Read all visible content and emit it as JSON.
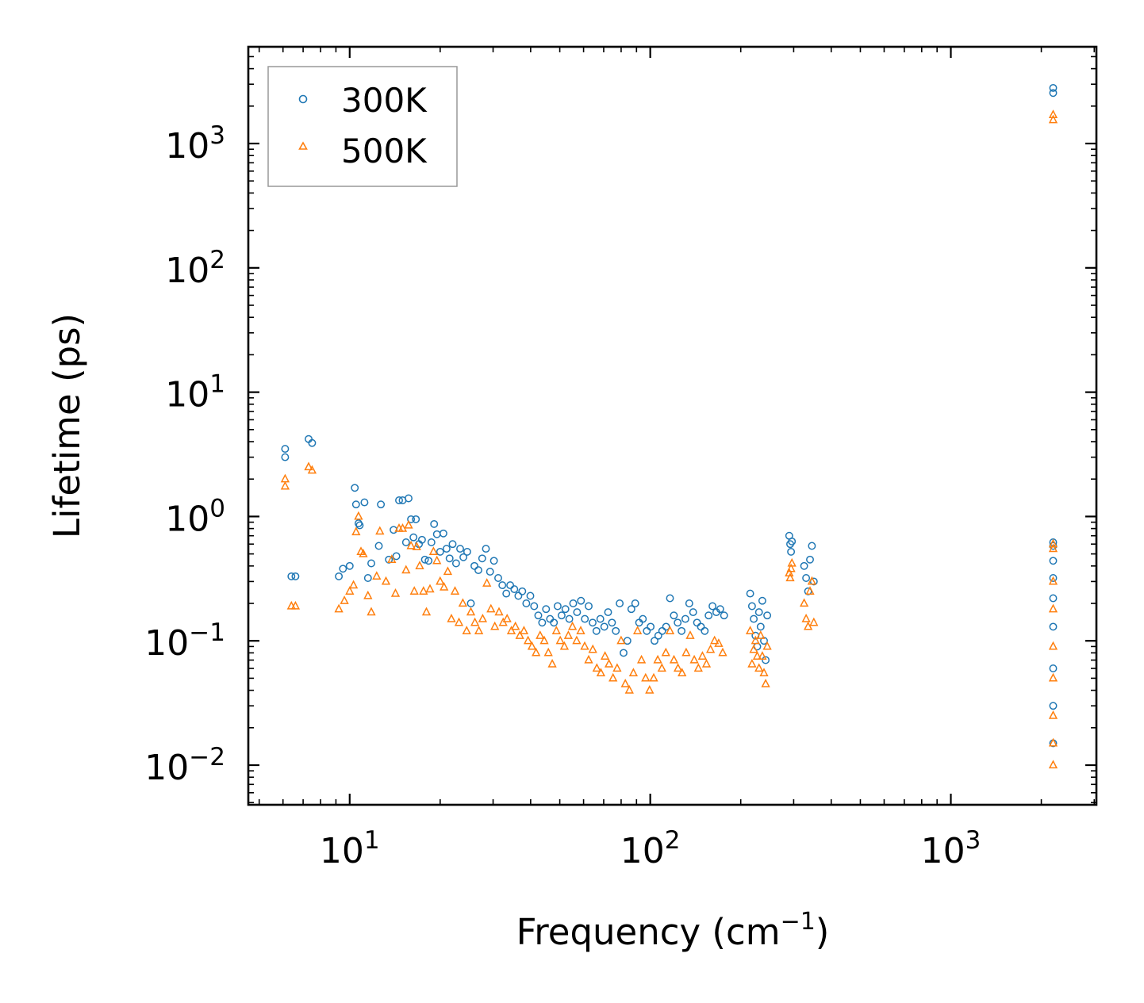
{
  "chart_data": {
    "type": "scatter",
    "title": "",
    "xlabel": "Frequency (cm",
    "xlabel_sup": "−1",
    "xlabel_end": ")",
    "ylabel": "Lifetime (ps)",
    "xscale": "log",
    "yscale": "log",
    "xlim": [
      4.6,
      3050
    ],
    "ylim": [
      0.0048,
      6000
    ],
    "legend_position": "top-left",
    "x_ticks": [
      {
        "base": "10",
        "exp": "1",
        "value": 10
      },
      {
        "base": "10",
        "exp": "2",
        "value": 100
      },
      {
        "base": "10",
        "exp": "3",
        "value": 1000
      }
    ],
    "y_ticks": [
      {
        "base": "10",
        "exp": "−2",
        "value": 0.01
      },
      {
        "base": "10",
        "exp": "−1",
        "value": 0.1
      },
      {
        "base": "10",
        "exp": "0",
        "value": 1
      },
      {
        "base": "10",
        "exp": "1",
        "value": 10
      },
      {
        "base": "10",
        "exp": "2",
        "value": 100
      },
      {
        "base": "10",
        "exp": "3",
        "value": 1000
      }
    ],
    "series": [
      {
        "name": "300K",
        "marker": "circle",
        "color": "#1f77b4",
        "points": [
          [
            6.1,
            3.5
          ],
          [
            6.1,
            3.0
          ],
          [
            6.4,
            0.33
          ],
          [
            6.6,
            0.33
          ],
          [
            7.3,
            4.2
          ],
          [
            7.5,
            3.9
          ],
          [
            9.2,
            0.33
          ],
          [
            9.5,
            0.38
          ],
          [
            10.0,
            0.4
          ],
          [
            10.4,
            1.7
          ],
          [
            10.5,
            1.25
          ],
          [
            10.7,
            0.88
          ],
          [
            10.8,
            0.85
          ],
          [
            11.2,
            1.3
          ],
          [
            11.5,
            0.32
          ],
          [
            11.8,
            0.42
          ],
          [
            12.5,
            0.58
          ],
          [
            12.7,
            1.25
          ],
          [
            13.5,
            0.45
          ],
          [
            14.0,
            0.78
          ],
          [
            14.3,
            0.48
          ],
          [
            14.6,
            1.35
          ],
          [
            15.0,
            1.35
          ],
          [
            15.4,
            0.62
          ],
          [
            15.7,
            1.4
          ],
          [
            16.0,
            0.95
          ],
          [
            16.3,
            0.68
          ],
          [
            16.6,
            0.95
          ],
          [
            17.0,
            0.6
          ],
          [
            17.4,
            0.65
          ],
          [
            17.8,
            0.45
          ],
          [
            18.3,
            0.44
          ],
          [
            18.7,
            0.62
          ],
          [
            19.1,
            0.87
          ],
          [
            19.5,
            0.72
          ],
          [
            20.0,
            0.52
          ],
          [
            20.5,
            0.73
          ],
          [
            21.0,
            0.55
          ],
          [
            21.5,
            0.46
          ],
          [
            22.0,
            0.6
          ],
          [
            22.6,
            0.42
          ],
          [
            23.3,
            0.55
          ],
          [
            23.9,
            0.47
          ],
          [
            24.6,
            0.52
          ],
          [
            25.3,
            0.2
          ],
          [
            26.0,
            0.4
          ],
          [
            26.8,
            0.37
          ],
          [
            27.6,
            0.46
          ],
          [
            28.4,
            0.55
          ],
          [
            29.3,
            0.36
          ],
          [
            30.2,
            0.44
          ],
          [
            31.2,
            0.32
          ],
          [
            32.2,
            0.28
          ],
          [
            33.2,
            0.24
          ],
          [
            34.2,
            0.28
          ],
          [
            35.3,
            0.26
          ],
          [
            36.4,
            0.23
          ],
          [
            37.5,
            0.25
          ],
          [
            38.7,
            0.2
          ],
          [
            39.9,
            0.23
          ],
          [
            41.1,
            0.19
          ],
          [
            42.4,
            0.16
          ],
          [
            43.7,
            0.14
          ],
          [
            45.0,
            0.18
          ],
          [
            46.4,
            0.15
          ],
          [
            47.8,
            0.14
          ],
          [
            49.2,
            0.19
          ],
          [
            50.7,
            0.16
          ],
          [
            52.2,
            0.18
          ],
          [
            53.8,
            0.15
          ],
          [
            55.4,
            0.2
          ],
          [
            57.1,
            0.17
          ],
          [
            58.8,
            0.21
          ],
          [
            60.6,
            0.15
          ],
          [
            62.4,
            0.19
          ],
          [
            64.3,
            0.14
          ],
          [
            66.2,
            0.12
          ],
          [
            68.2,
            0.15
          ],
          [
            70.3,
            0.13
          ],
          [
            72.4,
            0.17
          ],
          [
            74.6,
            0.14
          ],
          [
            76.8,
            0.12
          ],
          [
            79.1,
            0.2
          ],
          [
            81.5,
            0.08
          ],
          [
            83.9,
            0.1
          ],
          [
            86.5,
            0.18
          ],
          [
            89.1,
            0.2
          ],
          [
            91.8,
            0.14
          ],
          [
            94.5,
            0.15
          ],
          [
            97.4,
            0.12
          ],
          [
            100.3,
            0.13
          ],
          [
            103.3,
            0.1
          ],
          [
            106.4,
            0.11
          ],
          [
            109.6,
            0.12
          ],
          [
            112.9,
            0.13
          ],
          [
            116.3,
            0.22
          ],
          [
            119.8,
            0.16
          ],
          [
            123.4,
            0.14
          ],
          [
            127.1,
            0.12
          ],
          [
            130.9,
            0.15
          ],
          [
            134.8,
            0.2
          ],
          [
            138.9,
            0.17
          ],
          [
            143.1,
            0.14
          ],
          [
            147.4,
            0.13
          ],
          [
            151.8,
            0.12
          ],
          [
            156.4,
            0.16
          ],
          [
            161.1,
            0.19
          ],
          [
            165.9,
            0.17
          ],
          [
            170.9,
            0.18
          ],
          [
            176.0,
            0.16
          ],
          [
            215.0,
            0.24
          ],
          [
            218.0,
            0.19
          ],
          [
            221.0,
            0.15
          ],
          [
            224.0,
            0.11
          ],
          [
            227.0,
            0.09
          ],
          [
            230.0,
            0.17
          ],
          [
            233.0,
            0.13
          ],
          [
            236.0,
            0.21
          ],
          [
            239.0,
            0.1
          ],
          [
            242.0,
            0.07
          ],
          [
            245.0,
            0.16
          ],
          [
            290.0,
            0.7
          ],
          [
            292.0,
            0.6
          ],
          [
            294.0,
            0.52
          ],
          [
            296.0,
            0.63
          ],
          [
            325.0,
            0.4
          ],
          [
            330.0,
            0.32
          ],
          [
            335.0,
            0.25
          ],
          [
            340.0,
            0.45
          ],
          [
            345.0,
            0.58
          ],
          [
            350.0,
            0.3
          ],
          [
            2190.0,
            2800
          ],
          [
            2190.0,
            2550
          ],
          [
            2190.0,
            0.62
          ],
          [
            2190.0,
            0.58
          ],
          [
            2190.0,
            0.44
          ],
          [
            2190.0,
            0.32
          ],
          [
            2190.0,
            0.22
          ],
          [
            2190.0,
            0.13
          ],
          [
            2190.0,
            0.06
          ],
          [
            2190.0,
            0.03
          ],
          [
            2190.0,
            0.015
          ]
        ]
      },
      {
        "name": "500K",
        "marker": "triangle",
        "color": "#ff7f0e",
        "points": [
          [
            6.1,
            2.0
          ],
          [
            6.1,
            1.75
          ],
          [
            6.4,
            0.19
          ],
          [
            6.6,
            0.19
          ],
          [
            7.3,
            2.5
          ],
          [
            7.5,
            2.35
          ],
          [
            9.2,
            0.18
          ],
          [
            9.6,
            0.21
          ],
          [
            10.0,
            0.25
          ],
          [
            10.3,
            0.28
          ],
          [
            10.5,
            0.75
          ],
          [
            10.7,
            1.0
          ],
          [
            10.9,
            0.52
          ],
          [
            11.1,
            0.5
          ],
          [
            11.5,
            0.23
          ],
          [
            11.8,
            0.17
          ],
          [
            12.3,
            0.33
          ],
          [
            12.6,
            0.76
          ],
          [
            13.2,
            0.3
          ],
          [
            13.8,
            0.45
          ],
          [
            14.2,
            0.24
          ],
          [
            14.6,
            0.8
          ],
          [
            15.0,
            0.8
          ],
          [
            15.4,
            0.37
          ],
          [
            15.7,
            0.85
          ],
          [
            16.0,
            0.58
          ],
          [
            16.4,
            0.25
          ],
          [
            16.7,
            0.57
          ],
          [
            17.1,
            0.4
          ],
          [
            17.6,
            0.25
          ],
          [
            18.0,
            0.17
          ],
          [
            18.5,
            0.26
          ],
          [
            19.0,
            0.52
          ],
          [
            19.5,
            0.44
          ],
          [
            20.0,
            0.3
          ],
          [
            20.6,
            0.27
          ],
          [
            21.2,
            0.36
          ],
          [
            21.8,
            0.15
          ],
          [
            22.4,
            0.25
          ],
          [
            23.1,
            0.14
          ],
          [
            23.8,
            0.2
          ],
          [
            24.5,
            0.12
          ],
          [
            25.3,
            0.17
          ],
          [
            26.1,
            0.14
          ],
          [
            26.9,
            0.12
          ],
          [
            27.7,
            0.15
          ],
          [
            28.6,
            0.29
          ],
          [
            29.5,
            0.18
          ],
          [
            30.4,
            0.13
          ],
          [
            31.4,
            0.17
          ],
          [
            32.4,
            0.14
          ],
          [
            33.4,
            0.15
          ],
          [
            34.5,
            0.12
          ],
          [
            35.6,
            0.13
          ],
          [
            36.8,
            0.11
          ],
          [
            38.0,
            0.12
          ],
          [
            39.2,
            0.1
          ],
          [
            40.4,
            0.09
          ],
          [
            41.7,
            0.08
          ],
          [
            43.0,
            0.11
          ],
          [
            44.4,
            0.1
          ],
          [
            45.8,
            0.08
          ],
          [
            47.2,
            0.065
          ],
          [
            48.7,
            0.12
          ],
          [
            50.2,
            0.1
          ],
          [
            51.8,
            0.09
          ],
          [
            53.4,
            0.11
          ],
          [
            55.1,
            0.13
          ],
          [
            56.9,
            0.1
          ],
          [
            58.7,
            0.12
          ],
          [
            60.5,
            0.09
          ],
          [
            62.4,
            0.07
          ],
          [
            64.4,
            0.085
          ],
          [
            66.4,
            0.06
          ],
          [
            68.5,
            0.055
          ],
          [
            70.7,
            0.075
          ],
          [
            72.9,
            0.065
          ],
          [
            75.2,
            0.05
          ],
          [
            77.6,
            0.06
          ],
          [
            80.0,
            0.1
          ],
          [
            82.6,
            0.045
          ],
          [
            85.2,
            0.04
          ],
          [
            87.9,
            0.055
          ],
          [
            90.7,
            0.12
          ],
          [
            93.5,
            0.07
          ],
          [
            96.5,
            0.05
          ],
          [
            99.5,
            0.04
          ],
          [
            102.7,
            0.05
          ],
          [
            105.9,
            0.07
          ],
          [
            109.3,
            0.06
          ],
          [
            112.7,
            0.08
          ],
          [
            116.3,
            0.12
          ],
          [
            119.9,
            0.07
          ],
          [
            123.7,
            0.06
          ],
          [
            127.6,
            0.055
          ],
          [
            131.7,
            0.08
          ],
          [
            135.8,
            0.11
          ],
          [
            140.1,
            0.07
          ],
          [
            144.6,
            0.06
          ],
          [
            149.1,
            0.075
          ],
          [
            153.8,
            0.065
          ],
          [
            158.7,
            0.085
          ],
          [
            163.7,
            0.1
          ],
          [
            168.9,
            0.095
          ],
          [
            174.2,
            0.08
          ],
          [
            215.0,
            0.12
          ],
          [
            218.0,
            0.065
          ],
          [
            221.0,
            0.085
          ],
          [
            224.0,
            0.1
          ],
          [
            227.0,
            0.075
          ],
          [
            230.0,
            0.06
          ],
          [
            233.0,
            0.11
          ],
          [
            236.0,
            0.075
          ],
          [
            239.0,
            0.055
          ],
          [
            242.0,
            0.045
          ],
          [
            245.0,
            0.09
          ],
          [
            290.0,
            0.35
          ],
          [
            292.0,
            0.32
          ],
          [
            294.0,
            0.38
          ],
          [
            296.0,
            0.42
          ],
          [
            325.0,
            0.2
          ],
          [
            330.0,
            0.15
          ],
          [
            335.0,
            0.13
          ],
          [
            340.0,
            0.25
          ],
          [
            345.0,
            0.3
          ],
          [
            350.0,
            0.14
          ],
          [
            2190.0,
            1700
          ],
          [
            2190.0,
            1550
          ],
          [
            2190.0,
            0.6
          ],
          [
            2190.0,
            0.55
          ],
          [
            2190.0,
            0.3
          ],
          [
            2190.0,
            0.18
          ],
          [
            2190.0,
            0.09
          ],
          [
            2190.0,
            0.05
          ],
          [
            2190.0,
            0.025
          ],
          [
            2190.0,
            0.015
          ],
          [
            2190.0,
            0.01
          ]
        ]
      }
    ]
  },
  "legend": {
    "items": [
      {
        "label": "300K",
        "color": "#1f77b4",
        "marker": "circle"
      },
      {
        "label": "500K",
        "color": "#ff7f0e",
        "marker": "triangle"
      }
    ]
  }
}
